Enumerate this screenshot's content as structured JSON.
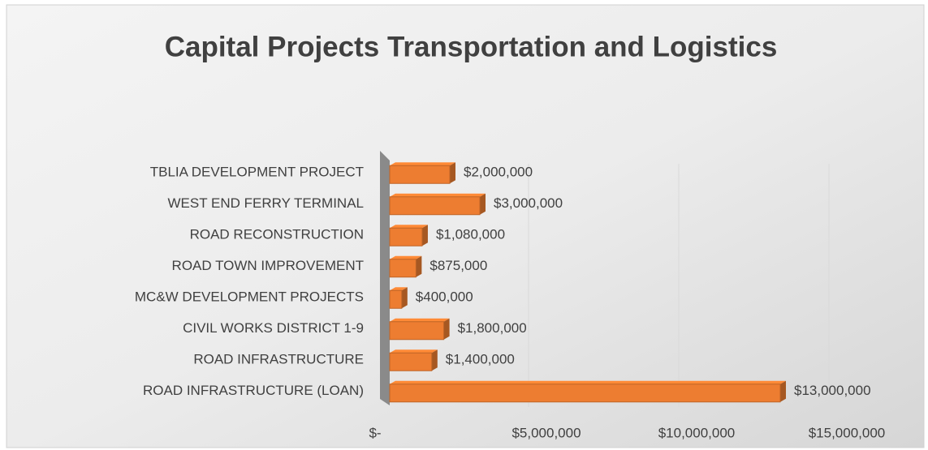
{
  "chart_data": {
    "type": "bar",
    "orientation": "horizontal",
    "title": "Capital Projects Transportation and Logistics",
    "categories": [
      "TBLIA DEVELOPMENT PROJECT",
      "WEST END FERRY TERMINAL",
      "ROAD RECONSTRUCTION",
      "ROAD TOWN IMPROVEMENT",
      "MC&W DEVELOPMENT PROJECTS",
      "CIVIL WORKS DISTRICT 1-9",
      "ROAD INFRASTRUCTURE",
      "ROAD INFRASTRUCTURE (LOAN)"
    ],
    "values": [
      2000000,
      3000000,
      1080000,
      875000,
      400000,
      1800000,
      1400000,
      13000000
    ],
    "value_labels": [
      "$2,000,000",
      "$3,000,000",
      "$1,080,000",
      "$875,000",
      "$400,000",
      "$1,800,000",
      "$1,400,000",
      "$13,000,000"
    ],
    "color": "#ed7d31",
    "xlim": [
      0,
      15000000
    ],
    "xticks": [
      {
        "value": 0,
        "label": "$-"
      },
      {
        "value": 5000000,
        "label": "$5,000,000"
      },
      {
        "value": 10000000,
        "label": "$10,000,000"
      },
      {
        "value": 15000000,
        "label": "$15,000,000"
      }
    ],
    "grid": true
  }
}
